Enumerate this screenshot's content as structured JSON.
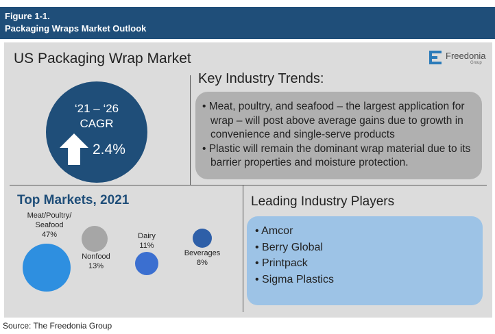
{
  "header": {
    "figure_label": "Figure 1-1.",
    "title": "Packaging Wraps Market Outlook"
  },
  "main_title": "US Packaging Wrap Market",
  "logo": {
    "name": "Freedonia",
    "sub": "Group"
  },
  "cagr": {
    "period": "‘21 – ‘26",
    "label": "CAGR",
    "value": "2.4%",
    "icon": "up-arrow-icon"
  },
  "trends": {
    "title": "Key Industry Trends:",
    "items": [
      "Meat, poultry, and seafood – the largest application for wrap – will post above average gains due to growth in convenience and single-serve products",
      "Plastic will remain the dominant wrap material due to its barrier properties and moisture protection."
    ]
  },
  "top_markets": {
    "title": "Top Markets, 2021",
    "items": [
      {
        "name_lines": [
          "Meat/Poultry/",
          "Seafood"
        ],
        "share": "47%",
        "value": 47,
        "color": "#2e8fe0"
      },
      {
        "name_lines": [
          "Nonfood"
        ],
        "share": "13%",
        "value": 13,
        "color": "#a6a6a6"
      },
      {
        "name_lines": [
          "Dairy"
        ],
        "share": "11%",
        "value": 11,
        "color": "#3b6fd0"
      },
      {
        "name_lines": [
          "Beverages"
        ],
        "share": "8%",
        "value": 8,
        "color": "#2e5fa8"
      }
    ]
  },
  "players": {
    "title": "Leading Industry Players",
    "items": [
      "Amcor",
      "Berry Global",
      "Printpack",
      "Sigma Plastics"
    ]
  },
  "source": "Source: The Freedonia Group"
}
